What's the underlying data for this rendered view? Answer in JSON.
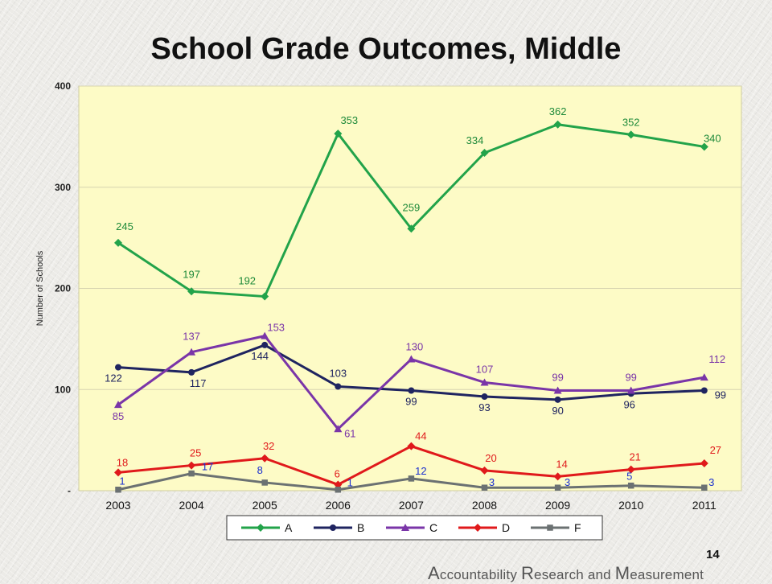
{
  "slide": {
    "title": "School Grade Outcomes, Middle",
    "page_number": "14",
    "footer": [
      {
        "initial": "A",
        "rest": "ccountability "
      },
      {
        "initial": "R",
        "rest": "esearch and "
      },
      {
        "initial": "M",
        "rest": "easurement"
      }
    ]
  },
  "chart_data": {
    "type": "line",
    "title": "School Grade Outcomes, Middle",
    "xlabel": "",
    "ylabel": "Number of Schools",
    "ylim": [
      0,
      400
    ],
    "yticks": [
      {
        "value": 0,
        "label": "-"
      },
      {
        "value": 100,
        "label": "100"
      },
      {
        "value": 200,
        "label": "200"
      },
      {
        "value": 300,
        "label": "300"
      },
      {
        "value": 400,
        "label": "400"
      }
    ],
    "categories": [
      "2003",
      "2004",
      "2005",
      "2006",
      "2007",
      "2008",
      "2009",
      "2010",
      "2011"
    ],
    "grid": true,
    "legend_position": "bottom",
    "plot_background": "#fdfbc6",
    "series": [
      {
        "name": "A",
        "color": "#22a34a",
        "marker": "diamond",
        "label_color": "#1e8a3a",
        "values": [
          245,
          197,
          192,
          353,
          259,
          334,
          362,
          352,
          340
        ]
      },
      {
        "name": "B",
        "color": "#1f2460",
        "marker": "circle",
        "label_color": "#1f2460",
        "values": [
          122,
          117,
          144,
          103,
          99,
          93,
          90,
          96,
          99
        ]
      },
      {
        "name": "C",
        "color": "#7a35a8",
        "marker": "triangle",
        "label_color": "#7a35a8",
        "values": [
          85,
          137,
          153,
          61,
          130,
          107,
          99,
          99,
          112
        ]
      },
      {
        "name": "D",
        "color": "#e0191b",
        "marker": "diamond",
        "label_color": "#e0191b",
        "values": [
          18,
          25,
          32,
          6,
          44,
          20,
          14,
          21,
          27
        ]
      },
      {
        "name": "F",
        "color": "#6b7172",
        "marker": "square",
        "label_color": "#1a2fcf",
        "values": [
          1,
          17,
          8,
          1,
          12,
          3,
          3,
          5,
          3
        ]
      }
    ]
  }
}
